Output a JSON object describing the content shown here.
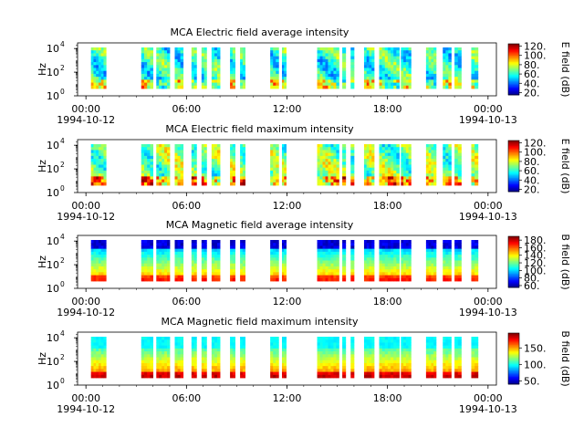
{
  "chart_data": [
    {
      "type": "heatmap",
      "title": "MCA  Electric field average intensity",
      "ylabel": "Hz",
      "y_scale": "log",
      "ylim": [
        1,
        30000
      ],
      "y_ticks": [
        {
          "value": 1,
          "base": "10",
          "exp": "0"
        },
        {
          "value": 100,
          "base": "10",
          "exp": "2"
        },
        {
          "value": 10000,
          "base": "10",
          "exp": "4"
        }
      ],
      "x_range_hours": [
        -0.5,
        24.5
      ],
      "x_ticks": [
        {
          "hour": 0,
          "label": "00:00",
          "sublabel": "1994-10-12"
        },
        {
          "hour": 6,
          "label": "06:00",
          "sublabel": ""
        },
        {
          "hour": 12,
          "label": "12:00",
          "sublabel": ""
        },
        {
          "hour": 18,
          "label": "18:00",
          "sublabel": ""
        },
        {
          "hour": 24,
          "label": "00:00",
          "sublabel": "1994-10-13"
        }
      ],
      "colorbar": {
        "label": "E field (dB)",
        "range": [
          15,
          125
        ],
        "ticks": [
          {
            "value": 20,
            "label": "20."
          },
          {
            "value": 40,
            "label": "40."
          },
          {
            "value": 60,
            "label": "60."
          },
          {
            "value": 80,
            "label": "80."
          },
          {
            "value": 100,
            "label": "100."
          },
          {
            "value": 120,
            "label": "120."
          }
        ]
      },
      "data_intervals_hours": [
        [
          0.3,
          1.2
        ],
        [
          3.3,
          4.0
        ],
        [
          4.2,
          5.0
        ],
        [
          5.3,
          5.8
        ],
        [
          6.3,
          6.6
        ],
        [
          6.9,
          7.2
        ],
        [
          7.5,
          8.0
        ],
        [
          8.6,
          8.9
        ],
        [
          9.2,
          9.5
        ],
        [
          11.0,
          11.5
        ],
        [
          11.7,
          11.95
        ],
        [
          13.8,
          15.1
        ],
        [
          15.3,
          15.5
        ],
        [
          15.8,
          16.0
        ],
        [
          16.6,
          17.2
        ],
        [
          17.5,
          18.7
        ],
        [
          18.8,
          19.4
        ],
        [
          20.3,
          20.9
        ],
        [
          21.3,
          21.8
        ],
        [
          22.0,
          22.4
        ],
        [
          23.0,
          23.4
        ]
      ]
    },
    {
      "type": "heatmap",
      "title": "MCA  Electric field maximum intensity",
      "ylabel": "Hz",
      "y_scale": "log",
      "ylim": [
        1,
        30000
      ],
      "y_ticks": [
        {
          "value": 1,
          "base": "10",
          "exp": "0"
        },
        {
          "value": 100,
          "base": "10",
          "exp": "2"
        },
        {
          "value": 10000,
          "base": "10",
          "exp": "4"
        }
      ],
      "x_range_hours": [
        -0.5,
        24.5
      ],
      "x_ticks": [
        {
          "hour": 0,
          "label": "00:00",
          "sublabel": "1994-10-12"
        },
        {
          "hour": 6,
          "label": "06:00",
          "sublabel": ""
        },
        {
          "hour": 12,
          "label": "12:00",
          "sublabel": ""
        },
        {
          "hour": 18,
          "label": "18:00",
          "sublabel": ""
        },
        {
          "hour": 24,
          "label": "00:00",
          "sublabel": "1994-10-13"
        }
      ],
      "colorbar": {
        "label": "E field (dB)",
        "range": [
          15,
          125
        ],
        "ticks": [
          {
            "value": 20,
            "label": "20."
          },
          {
            "value": 40,
            "label": "40."
          },
          {
            "value": 60,
            "label": "60."
          },
          {
            "value": 80,
            "label": "80."
          },
          {
            "value": 100,
            "label": "100."
          },
          {
            "value": 120,
            "label": "120."
          }
        ]
      },
      "data_intervals_hours": [
        [
          0.3,
          1.2
        ],
        [
          3.3,
          4.0
        ],
        [
          4.2,
          5.0
        ],
        [
          5.3,
          5.8
        ],
        [
          6.3,
          6.6
        ],
        [
          6.9,
          7.2
        ],
        [
          7.5,
          8.0
        ],
        [
          8.6,
          8.9
        ],
        [
          9.2,
          9.5
        ],
        [
          11.0,
          11.5
        ],
        [
          11.7,
          11.95
        ],
        [
          13.8,
          15.1
        ],
        [
          15.3,
          15.5
        ],
        [
          15.8,
          16.0
        ],
        [
          16.6,
          17.2
        ],
        [
          17.5,
          18.7
        ],
        [
          18.8,
          19.4
        ],
        [
          20.3,
          20.9
        ],
        [
          21.3,
          21.8
        ],
        [
          22.0,
          22.4
        ],
        [
          23.0,
          23.4
        ]
      ]
    },
    {
      "type": "heatmap",
      "title": "MCA  Magnetic field average intensity",
      "ylabel": "Hz",
      "y_scale": "log",
      "ylim": [
        1,
        30000
      ],
      "y_ticks": [
        {
          "value": 1,
          "base": "10",
          "exp": "0"
        },
        {
          "value": 100,
          "base": "10",
          "exp": "2"
        },
        {
          "value": 10000,
          "base": "10",
          "exp": "4"
        }
      ],
      "x_range_hours": [
        -0.5,
        24.5
      ],
      "x_ticks": [
        {
          "hour": 0,
          "label": "00:00",
          "sublabel": "1994-10-12"
        },
        {
          "hour": 6,
          "label": "06:00",
          "sublabel": ""
        },
        {
          "hour": 12,
          "label": "12:00",
          "sublabel": ""
        },
        {
          "hour": 18,
          "label": "18:00",
          "sublabel": ""
        },
        {
          "hour": 24,
          "label": "00:00",
          "sublabel": "1994-10-13"
        }
      ],
      "colorbar": {
        "label": "B field (dB)",
        "range": [
          55,
          190
        ],
        "ticks": [
          {
            "value": 60,
            "label": "60."
          },
          {
            "value": 80,
            "label": "80."
          },
          {
            "value": 100,
            "label": "100."
          },
          {
            "value": 120,
            "label": "120."
          },
          {
            "value": 140,
            "label": "140."
          },
          {
            "value": 160,
            "label": "160."
          },
          {
            "value": 180,
            "label": "180."
          }
        ]
      },
      "data_intervals_hours": [
        [
          0.3,
          1.2
        ],
        [
          3.3,
          4.0
        ],
        [
          4.2,
          5.0
        ],
        [
          5.3,
          5.8
        ],
        [
          6.3,
          6.6
        ],
        [
          6.9,
          7.2
        ],
        [
          7.5,
          8.0
        ],
        [
          8.6,
          8.9
        ],
        [
          9.2,
          9.5
        ],
        [
          11.0,
          11.5
        ],
        [
          11.7,
          11.95
        ],
        [
          13.8,
          15.1
        ],
        [
          15.3,
          15.5
        ],
        [
          15.8,
          16.0
        ],
        [
          16.6,
          17.2
        ],
        [
          17.5,
          18.7
        ],
        [
          18.8,
          19.4
        ],
        [
          20.3,
          20.9
        ],
        [
          21.3,
          21.8
        ],
        [
          22.0,
          22.4
        ],
        [
          23.0,
          23.4
        ]
      ]
    },
    {
      "type": "heatmap",
      "title": "MCA  Magnetic field maximum intensity",
      "ylabel": "Hz",
      "y_scale": "log",
      "ylim": [
        1,
        30000
      ],
      "y_ticks": [
        {
          "value": 1,
          "base": "10",
          "exp": "0"
        },
        {
          "value": 100,
          "base": "10",
          "exp": "2"
        },
        {
          "value": 10000,
          "base": "10",
          "exp": "4"
        }
      ],
      "x_range_hours": [
        -0.5,
        24.5
      ],
      "x_ticks": [
        {
          "hour": 0,
          "label": "00:00",
          "sublabel": "1994-10-12"
        },
        {
          "hour": 6,
          "label": "06:00",
          "sublabel": ""
        },
        {
          "hour": 12,
          "label": "12:00",
          "sublabel": ""
        },
        {
          "hour": 18,
          "label": "18:00",
          "sublabel": ""
        },
        {
          "hour": 24,
          "label": "00:00",
          "sublabel": "1994-10-13"
        }
      ],
      "colorbar": {
        "label": "B field (dB)",
        "range": [
          40,
          195
        ],
        "ticks": [
          {
            "value": 50,
            "label": "50."
          },
          {
            "value": 100,
            "label": "100."
          },
          {
            "value": 150,
            "label": "150."
          }
        ]
      },
      "data_intervals_hours": [
        [
          0.3,
          1.2
        ],
        [
          3.3,
          4.0
        ],
        [
          4.2,
          5.0
        ],
        [
          5.3,
          5.8
        ],
        [
          6.3,
          6.6
        ],
        [
          6.9,
          7.2
        ],
        [
          7.5,
          8.0
        ],
        [
          8.6,
          8.9
        ],
        [
          9.2,
          9.5
        ],
        [
          11.0,
          11.5
        ],
        [
          11.7,
          11.95
        ],
        [
          13.8,
          15.1
        ],
        [
          15.3,
          15.5
        ],
        [
          15.8,
          16.0
        ],
        [
          16.6,
          17.2
        ],
        [
          17.5,
          18.7
        ],
        [
          18.8,
          19.4
        ],
        [
          20.3,
          20.9
        ],
        [
          21.3,
          21.8
        ],
        [
          22.0,
          22.4
        ],
        [
          23.0,
          23.4
        ]
      ]
    }
  ]
}
